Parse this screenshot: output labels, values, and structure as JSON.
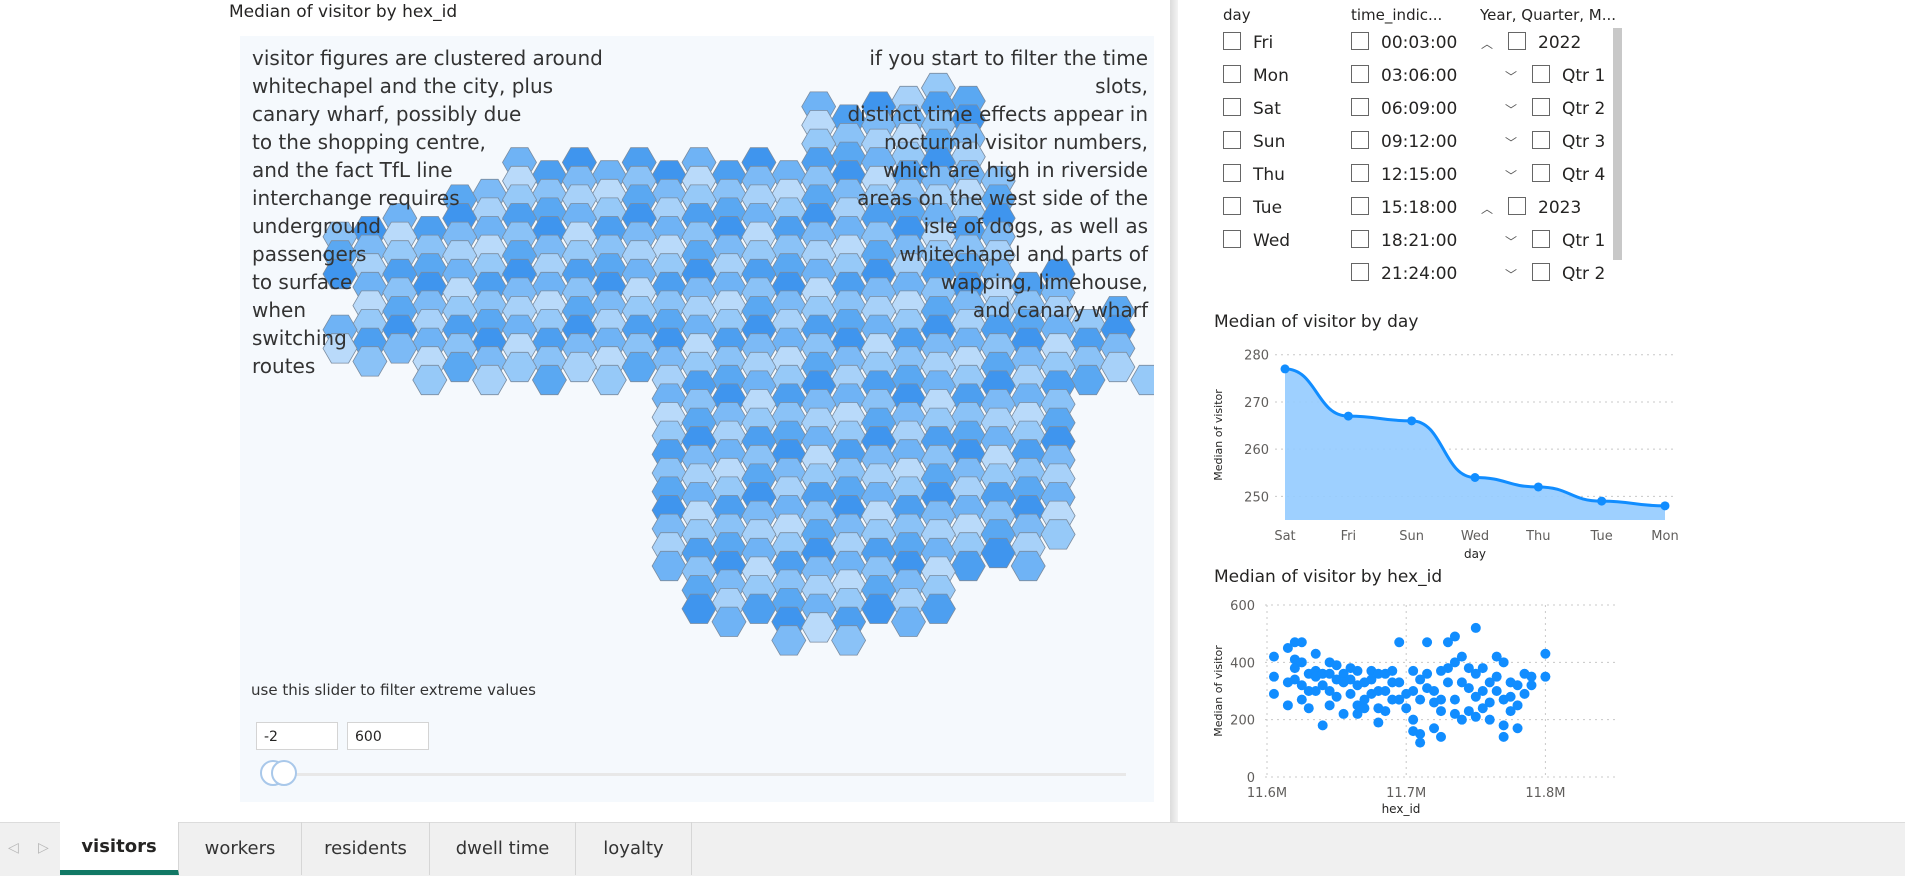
{
  "map_visual": {
    "title": "Median of visitor by hex_id",
    "note_left": [
      "visitor figures are clustered around",
      "whitechapel and the city, plus",
      "canary wharf, possibly due",
      "to the shopping centre,",
      "and the fact TfL line",
      "interchange requires",
      "underground",
      "passengers",
      "to surface",
      "when",
      "switching",
      "routes"
    ],
    "note_right": [
      "if you start to filter the time slots,",
      "distinct time effects appear in",
      "nocturnal visitor numbers,",
      "which are high in riverside",
      "areas on the west side of the",
      "isle of dogs, as well as",
      "whitechapel  and parts of",
      "wapping, limehouse,",
      "and canary wharf"
    ],
    "slider_caption": "use this slider to filter extreme values",
    "slider_min": "-2",
    "slider_max": "600",
    "slider_low_value": -2,
    "slider_high_value": 600
  },
  "slicers": {
    "day": {
      "header": "day",
      "items": [
        "Fri",
        "Mon",
        "Sat",
        "Sun",
        "Thu",
        "Tue",
        "Wed"
      ]
    },
    "time": {
      "header": "time_indic...",
      "items": [
        "00:03:00",
        "03:06:00",
        "06:09:00",
        "09:12:00",
        "12:15:00",
        "15:18:00",
        "18:21:00",
        "21:24:00"
      ]
    },
    "hierarchy": {
      "header": "Year, Quarter, M...",
      "items": [
        {
          "label": "2022",
          "level": 0,
          "chevron": "^"
        },
        {
          "label": "Qtr 1",
          "level": 1,
          "chevron": "v"
        },
        {
          "label": "Qtr 2",
          "level": 1,
          "chevron": "v"
        },
        {
          "label": "Qtr 3",
          "level": 1,
          "chevron": "v"
        },
        {
          "label": "Qtr 4",
          "level": 1,
          "chevron": "v"
        },
        {
          "label": "2023",
          "level": 0,
          "chevron": "^"
        },
        {
          "label": "Qtr 1",
          "level": 1,
          "chevron": "v"
        },
        {
          "label": "Qtr 2",
          "level": 1,
          "chevron": "v"
        }
      ]
    }
  },
  "chart_data": [
    {
      "type": "area",
      "title": "Median of visitor by day",
      "xlabel": "day",
      "ylabel": "Median of visitor",
      "categories": [
        "Sat",
        "Fri",
        "Sun",
        "Wed",
        "Thu",
        "Tue",
        "Mon"
      ],
      "values": [
        277,
        267,
        266,
        254,
        252,
        249,
        248
      ],
      "yticks": [
        250,
        260,
        270,
        280
      ],
      "ylim": [
        245,
        281
      ],
      "color": "#118dff",
      "fill": "#94cbff",
      "grid": true
    },
    {
      "type": "scatter",
      "title": "Median of visitor by hex_id",
      "xlabel": "hex_id",
      "ylabel": "Median of visitor",
      "xticks": [
        "11.6M",
        "11.7M",
        "11.8M"
      ],
      "xlim": [
        11600000,
        11850000
      ],
      "yticks": [
        0,
        200,
        400,
        600
      ],
      "ylim": [
        0,
        600
      ],
      "color": "#118dff",
      "grid": true,
      "points": [
        [
          11605000,
          420
        ],
        [
          11605000,
          350
        ],
        [
          11605000,
          290
        ],
        [
          11615000,
          450
        ],
        [
          11615000,
          330
        ],
        [
          11615000,
          250
        ],
        [
          11620000,
          470
        ],
        [
          11620000,
          410
        ],
        [
          11620000,
          380
        ],
        [
          11620000,
          340
        ],
        [
          11625000,
          470
        ],
        [
          11625000,
          400
        ],
        [
          11625000,
          320
        ],
        [
          11625000,
          270
        ],
        [
          11630000,
          360
        ],
        [
          11630000,
          300
        ],
        [
          11630000,
          240
        ],
        [
          11635000,
          430
        ],
        [
          11635000,
          370
        ],
        [
          11635000,
          350
        ],
        [
          11635000,
          300
        ],
        [
          11640000,
          360
        ],
        [
          11640000,
          320
        ],
        [
          11640000,
          180
        ],
        [
          11645000,
          400
        ],
        [
          11645000,
          360
        ],
        [
          11645000,
          300
        ],
        [
          11645000,
          250
        ],
        [
          11650000,
          390
        ],
        [
          11650000,
          340
        ],
        [
          11650000,
          280
        ],
        [
          11655000,
          360
        ],
        [
          11655000,
          330
        ],
        [
          11655000,
          220
        ],
        [
          11660000,
          380
        ],
        [
          11660000,
          340
        ],
        [
          11660000,
          290
        ],
        [
          11665000,
          370
        ],
        [
          11665000,
          320
        ],
        [
          11665000,
          250
        ],
        [
          11665000,
          220
        ],
        [
          11670000,
          330
        ],
        [
          11670000,
          270
        ],
        [
          11670000,
          240
        ],
        [
          11675000,
          370
        ],
        [
          11675000,
          340
        ],
        [
          11675000,
          290
        ],
        [
          11680000,
          360
        ],
        [
          11680000,
          300
        ],
        [
          11680000,
          240
        ],
        [
          11680000,
          190
        ],
        [
          11685000,
          360
        ],
        [
          11685000,
          300
        ],
        [
          11685000,
          230
        ],
        [
          11690000,
          370
        ],
        [
          11690000,
          330
        ],
        [
          11690000,
          270
        ],
        [
          11695000,
          470
        ],
        [
          11695000,
          330
        ],
        [
          11695000,
          270
        ],
        [
          11700000,
          290
        ],
        [
          11700000,
          240
        ],
        [
          11705000,
          370
        ],
        [
          11705000,
          300
        ],
        [
          11705000,
          200
        ],
        [
          11705000,
          160
        ],
        [
          11710000,
          340
        ],
        [
          11710000,
          270
        ],
        [
          11710000,
          150
        ],
        [
          11710000,
          120
        ],
        [
          11715000,
          470
        ],
        [
          11715000,
          360
        ],
        [
          11715000,
          310
        ],
        [
          11720000,
          300
        ],
        [
          11720000,
          260
        ],
        [
          11720000,
          170
        ],
        [
          11725000,
          370
        ],
        [
          11725000,
          270
        ],
        [
          11725000,
          230
        ],
        [
          11725000,
          140
        ],
        [
          11730000,
          470
        ],
        [
          11730000,
          380
        ],
        [
          11730000,
          330
        ],
        [
          11735000,
          490
        ],
        [
          11735000,
          400
        ],
        [
          11735000,
          270
        ],
        [
          11735000,
          220
        ],
        [
          11740000,
          420
        ],
        [
          11740000,
          330
        ],
        [
          11740000,
          200
        ],
        [
          11745000,
          380
        ],
        [
          11745000,
          310
        ],
        [
          11745000,
          230
        ],
        [
          11750000,
          520
        ],
        [
          11750000,
          360
        ],
        [
          11750000,
          280
        ],
        [
          11750000,
          210
        ],
        [
          11755000,
          380
        ],
        [
          11755000,
          300
        ],
        [
          11755000,
          240
        ],
        [
          11760000,
          330
        ],
        [
          11760000,
          260
        ],
        [
          11760000,
          200
        ],
        [
          11765000,
          420
        ],
        [
          11765000,
          350
        ],
        [
          11765000,
          300
        ],
        [
          11770000,
          400
        ],
        [
          11770000,
          270
        ],
        [
          11770000,
          180
        ],
        [
          11770000,
          140
        ],
        [
          11775000,
          330
        ],
        [
          11775000,
          280
        ],
        [
          11775000,
          230
        ],
        [
          11780000,
          320
        ],
        [
          11780000,
          250
        ],
        [
          11780000,
          170
        ],
        [
          11785000,
          360
        ],
        [
          11785000,
          290
        ],
        [
          11790000,
          350
        ],
        [
          11790000,
          320
        ],
        [
          11800000,
          430
        ],
        [
          11800000,
          350
        ]
      ]
    }
  ],
  "tabs": [
    {
      "label": "visitors",
      "active": true
    },
    {
      "label": "workers",
      "active": false
    },
    {
      "label": "residents",
      "active": false
    },
    {
      "label": "dwell time",
      "active": false
    },
    {
      "label": "loyalty",
      "active": false
    }
  ],
  "tab_nav": {
    "prev_icon": "caret-left-icon",
    "next_icon": "caret-right-icon",
    "prev_glyph": "◁",
    "next_glyph": "▷"
  }
}
